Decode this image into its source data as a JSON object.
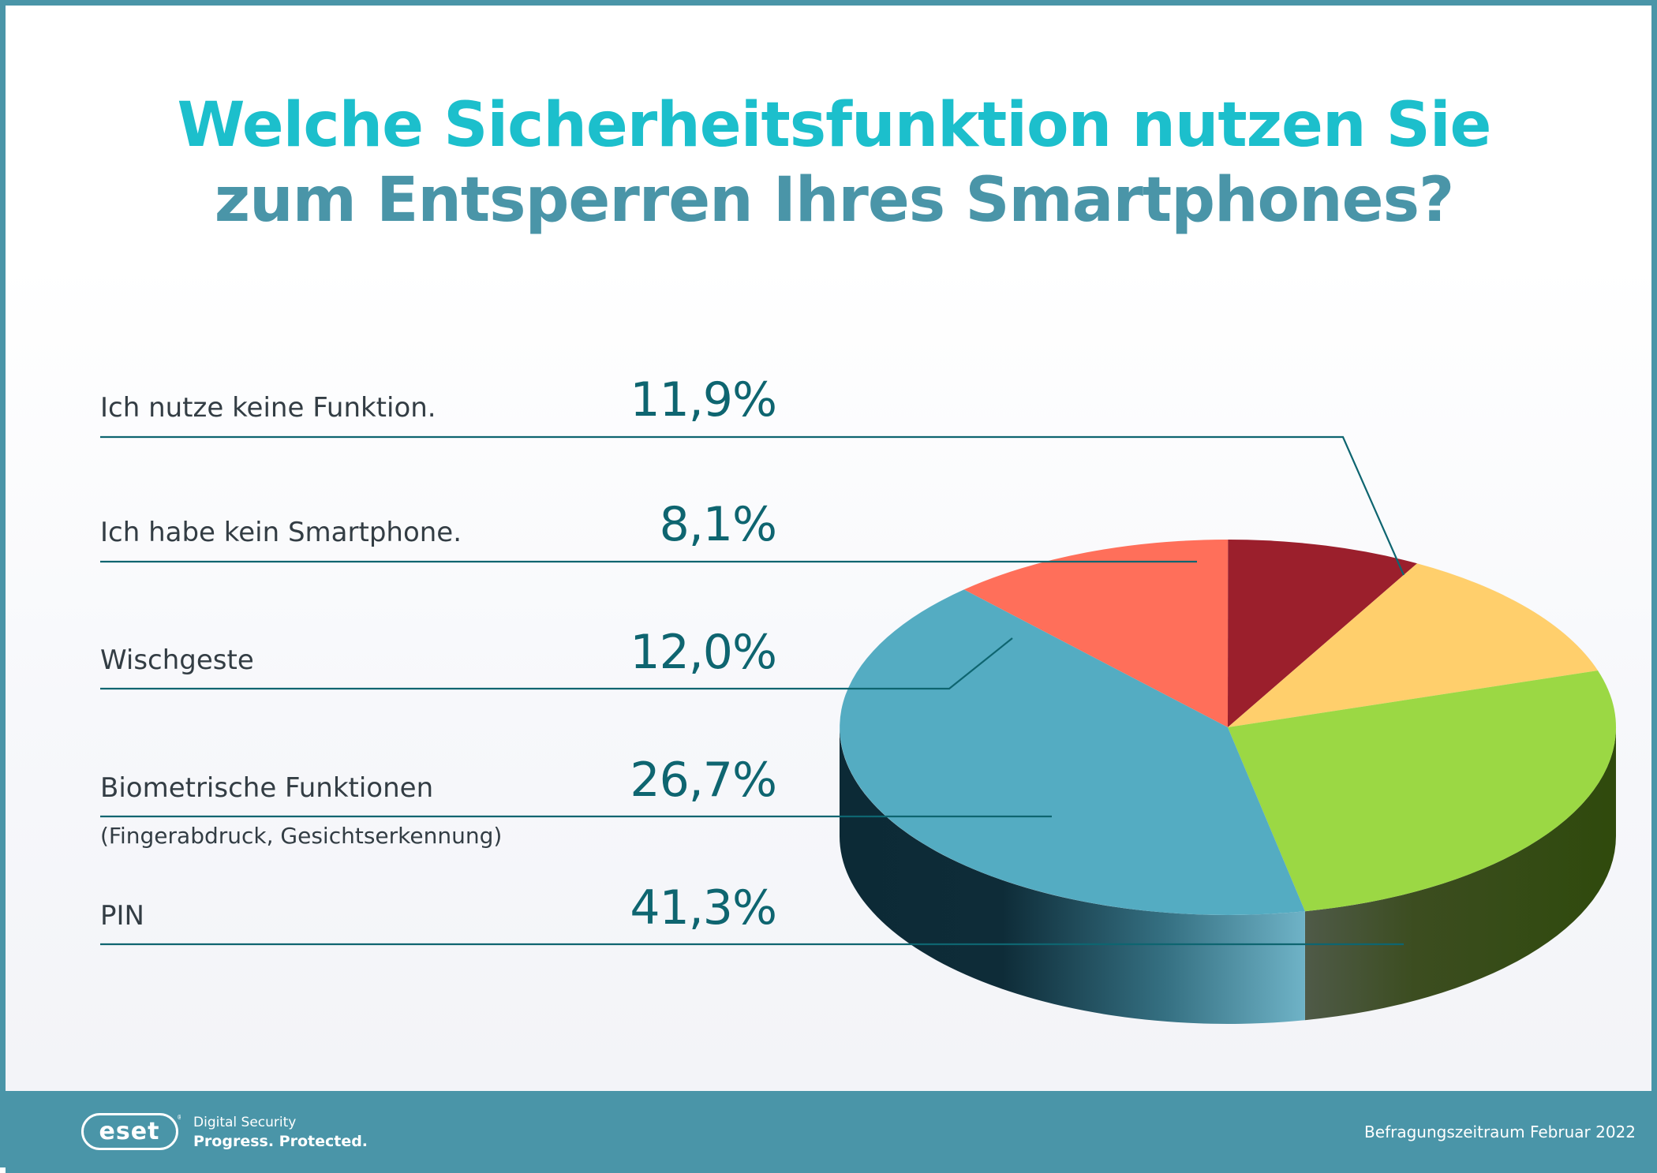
{
  "title": {
    "line1": "Welche Sicherheitsfunktion nutzen Sie",
    "line2": "zum Entsperren Ihres Smartphones?"
  },
  "chart_data": {
    "type": "pie",
    "title": "Welche Sicherheitsfunktion nutzen Sie zum Entsperren Ihres Smartphones?",
    "categories": [
      "Ich nutze keine Funktion.",
      "Ich habe kein Smartphone.",
      "Wischgeste",
      "Biometrische Funktionen",
      "PIN"
    ],
    "subtitles": [
      "",
      "",
      "",
      "(Fingerabdruck, Gesichtserkennung)",
      ""
    ],
    "values": [
      11.9,
      8.1,
      12.0,
      26.7,
      41.3
    ],
    "value_labels": [
      "11,9%",
      "8,1%",
      "12,0%",
      "26,7%",
      "41,3%"
    ],
    "colors": [
      "#ff6f5a",
      "#9b1f2c",
      "#ffcf6c",
      "#9bd844",
      "#54acc2"
    ]
  },
  "footer": {
    "logo_text": "eset",
    "tagline1": "Digital Security",
    "tagline2": "Progress. Protected.",
    "period": "Befragungszeitraum Februar 2022"
  },
  "colors": {
    "accent": "#4a95a8",
    "title_cyan": "#1cbfcc",
    "value_text": "#0e6570"
  }
}
